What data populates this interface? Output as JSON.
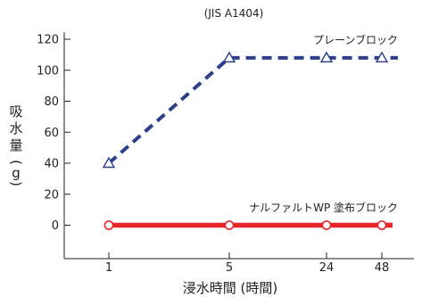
{
  "chart_data": {
    "type": "line",
    "title": "(JIS A1404)",
    "xlabel": "浸水時間 (時間)",
    "ylabel": "吸水量 (g)",
    "categories": [
      "1",
      "5",
      "24",
      "48"
    ],
    "ylim": [
      -15,
      125
    ],
    "yticks": [
      0,
      20,
      40,
      60,
      80,
      100,
      120
    ],
    "grid": false,
    "series": [
      {
        "name": "プレーンブロック",
        "values": [
          40,
          108,
          108,
          108
        ],
        "color": "#2b3f8c",
        "line_style": "dashed",
        "marker": "triangle-open"
      },
      {
        "name": "ナルファルトWP 塗布ブロック",
        "values": [
          0,
          0,
          0,
          0
        ],
        "color": "#e8262a",
        "line_style": "solid",
        "marker": "circle-open"
      }
    ]
  }
}
